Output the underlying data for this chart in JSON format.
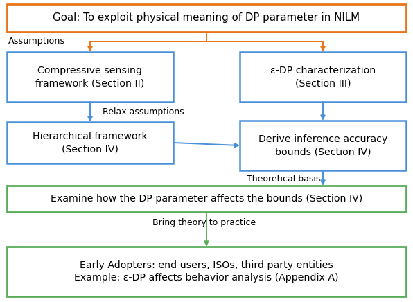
{
  "title": "Goal: To exploit physical meaning of DP parameter in NILM",
  "box1_left": "Compressive sensing\nframework (Section II)",
  "box1_right": "ε-DP characterization\n(Section III)",
  "box2_left": "Hierarchical framework\n(Section IV)",
  "box2_right": "Derive inference accuracy\nbounds (Section IV)",
  "box3": "Examine how the DP parameter affects the bounds (Section IV)",
  "box4": "Early Adopters: end users, ISOs, third party entities\nExample: ε-DP affects behavior analysis (Appendix A)",
  "label_assumptions": "Assumptions",
  "label_relax": "Relax assumptions",
  "label_theoretical": "Theoretical basis",
  "label_bring": "Bring theory to practice",
  "color_orange": "#E8751A",
  "color_blue": "#4A90D9",
  "color_green": "#5BAD5B",
  "bg_color": "#FFFFFF"
}
